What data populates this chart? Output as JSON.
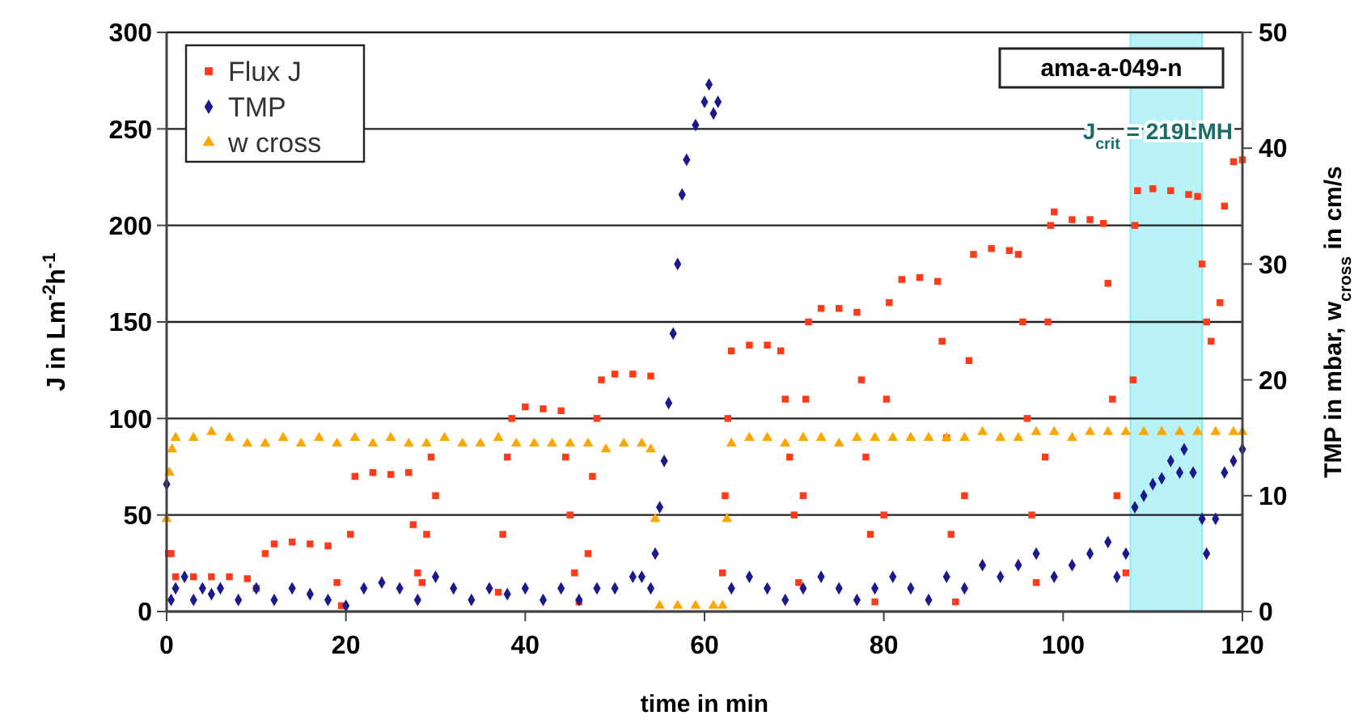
{
  "chart_data": {
    "type": "scatter",
    "xlabel": "time in min",
    "ylabel": "J in Lm$^{-2}$h$^{-1}$",
    "y2label": "TMP in mbar, w$_{cross}$ in cm/s",
    "xlim": [
      0,
      120
    ],
    "xticks": [
      0,
      20,
      40,
      60,
      80,
      100,
      120
    ],
    "ylim": [
      0,
      300
    ],
    "yticks": [
      0,
      50,
      100,
      150,
      200,
      250,
      300
    ],
    "y2lim": [
      0,
      50
    ],
    "y2ticks": [
      0,
      10,
      20,
      30,
      40,
      50
    ],
    "grid": "y",
    "legend": "top left",
    "annotations": [
      "ama-a-049-n",
      "J$_{crit}$ = 219LMH"
    ],
    "bands": [
      {
        "axis": "x",
        "from": 107.5,
        "to": 115.5,
        "color": "#a8f0f5"
      }
    ],
    "series": [
      {
        "name": "Flux J",
        "color": "#ff3b1a",
        "marker": "square",
        "x": [
          0.2,
          0.5,
          1,
          3,
          5,
          7,
          9,
          10,
          11,
          12,
          14,
          16,
          18,
          19,
          19.5,
          20.5,
          21,
          23,
          25,
          27,
          27.5,
          28,
          28.5,
          29,
          29.5,
          30,
          37,
          37.5,
          38,
          38.5,
          40,
          42,
          44,
          44.5,
          45,
          45.5,
          46,
          47,
          47.5,
          48,
          48.5,
          50,
          52,
          54,
          62,
          62.3,
          62.6,
          63,
          65,
          67,
          68.5,
          69,
          69.5,
          70,
          70.5,
          71,
          71.3,
          71.6,
          73,
          75,
          77,
          77.5,
          78,
          78.5,
          79,
          80,
          80.3,
          80.6,
          82,
          84,
          86,
          86.5,
          87,
          87.5,
          88,
          89,
          89.5,
          90,
          92,
          94,
          95,
          95.5,
          96,
          96.5,
          97,
          98,
          98.3,
          98.6,
          99,
          101,
          103,
          104.5,
          105,
          105.5,
          106,
          107,
          107.8,
          108,
          108.3,
          110,
          112,
          114,
          115,
          115.5,
          116,
          116.5,
          117.5,
          118,
          119,
          120
        ],
        "values": [
          30,
          30,
          18,
          18,
          18,
          18,
          17,
          12,
          30,
          35,
          36,
          35,
          34,
          15,
          3,
          40,
          70,
          72,
          71,
          72,
          45,
          20,
          15,
          40,
          80,
          60,
          10,
          40,
          80,
          100,
          106,
          105,
          104,
          80,
          50,
          20,
          5,
          30,
          70,
          100,
          120,
          123,
          123,
          122,
          20,
          60,
          100,
          135,
          138,
          138,
          135,
          110,
          80,
          50,
          15,
          60,
          110,
          150,
          157,
          157,
          155,
          120,
          80,
          40,
          5,
          50,
          110,
          160,
          172,
          173,
          171,
          140,
          90,
          40,
          5,
          60,
          130,
          185,
          188,
          187,
          185,
          150,
          100,
          50,
          15,
          80,
          150,
          200,
          207,
          203,
          203,
          201,
          170,
          110,
          60,
          20,
          120,
          200,
          218,
          219,
          218,
          216,
          215,
          180,
          150,
          140,
          160,
          210,
          233,
          234
        ]
      },
      {
        "name": "TMP",
        "color": "#1a1a8c",
        "marker": "diamond",
        "axis": "y2",
        "x": [
          0,
          0.5,
          1,
          2,
          3,
          4,
          5,
          6,
          8,
          10,
          12,
          14,
          16,
          18,
          20,
          22,
          24,
          26,
          28,
          30,
          32,
          34,
          36,
          38,
          40,
          42,
          44,
          46,
          48,
          50,
          52,
          53,
          54,
          54.5,
          55,
          55.5,
          56,
          56.5,
          57,
          57.5,
          58,
          59,
          60,
          60.5,
          61,
          61.5,
          63,
          65,
          67,
          69,
          71,
          73,
          75,
          77,
          79,
          81,
          83,
          85,
          87,
          89,
          91,
          93,
          95,
          97,
          99,
          101,
          103,
          105,
          106,
          107,
          108,
          109,
          110,
          111,
          112,
          113,
          113.5,
          114.5,
          115.5,
          116,
          117,
          118,
          119,
          120
        ],
        "values": [
          11,
          1,
          2,
          3,
          1,
          2,
          1.5,
          2,
          1,
          2,
          1,
          2,
          1.5,
          1,
          0.5,
          2,
          2.5,
          2,
          1,
          3,
          2,
          1,
          2,
          1.5,
          2,
          1,
          2,
          1,
          2,
          2,
          3,
          3,
          2,
          5,
          9,
          13,
          18,
          24,
          30,
          36,
          39,
          42,
          44,
          45.5,
          43,
          44,
          2,
          3,
          2,
          1,
          2,
          3,
          2,
          1,
          2,
          3,
          2,
          1,
          3,
          2,
          4,
          3,
          4,
          5,
          3,
          4,
          5,
          6,
          3,
          5,
          9,
          10,
          11,
          11.5,
          13,
          12,
          14,
          12,
          8,
          5,
          8,
          12,
          13,
          14
        ]
      },
      {
        "name": "w cross",
        "color": "#ffa500",
        "marker": "triangle",
        "axis": "y2",
        "x": [
          0,
          0.3,
          0.6,
          1,
          3,
          5,
          7,
          9,
          11,
          13,
          15,
          17,
          19,
          21,
          23,
          25,
          27,
          29,
          31,
          33,
          35,
          37,
          39,
          41,
          43,
          45,
          47,
          49,
          51,
          53,
          54,
          54.5,
          55,
          57,
          59,
          61,
          62,
          62.5,
          63,
          65,
          67,
          69,
          71,
          73,
          75,
          77,
          79,
          81,
          83,
          85,
          87,
          89,
          91,
          93,
          95,
          97,
          99,
          101,
          103,
          105,
          107,
          109,
          111,
          113,
          115,
          117,
          119,
          120
        ],
        "values": [
          8,
          12,
          14,
          15,
          15,
          15.5,
          15,
          14.5,
          14.5,
          15,
          14.5,
          15,
          14.5,
          15,
          14.5,
          15,
          14.5,
          14.5,
          15,
          14.5,
          14.5,
          15,
          14.5,
          14.5,
          14.5,
          14.5,
          14.5,
          14,
          14.5,
          14.5,
          14,
          8,
          0.5,
          0.5,
          0.5,
          0.5,
          0.5,
          8,
          14.5,
          15,
          15,
          14.5,
          15,
          15,
          14.5,
          15,
          15,
          15,
          15,
          15,
          15,
          15,
          15.5,
          15,
          15,
          15.5,
          15.5,
          15,
          15.5,
          15.5,
          15.5,
          15.5,
          15.5,
          15.5,
          15.5,
          15.5,
          15.5,
          15.5
        ]
      }
    ]
  }
}
